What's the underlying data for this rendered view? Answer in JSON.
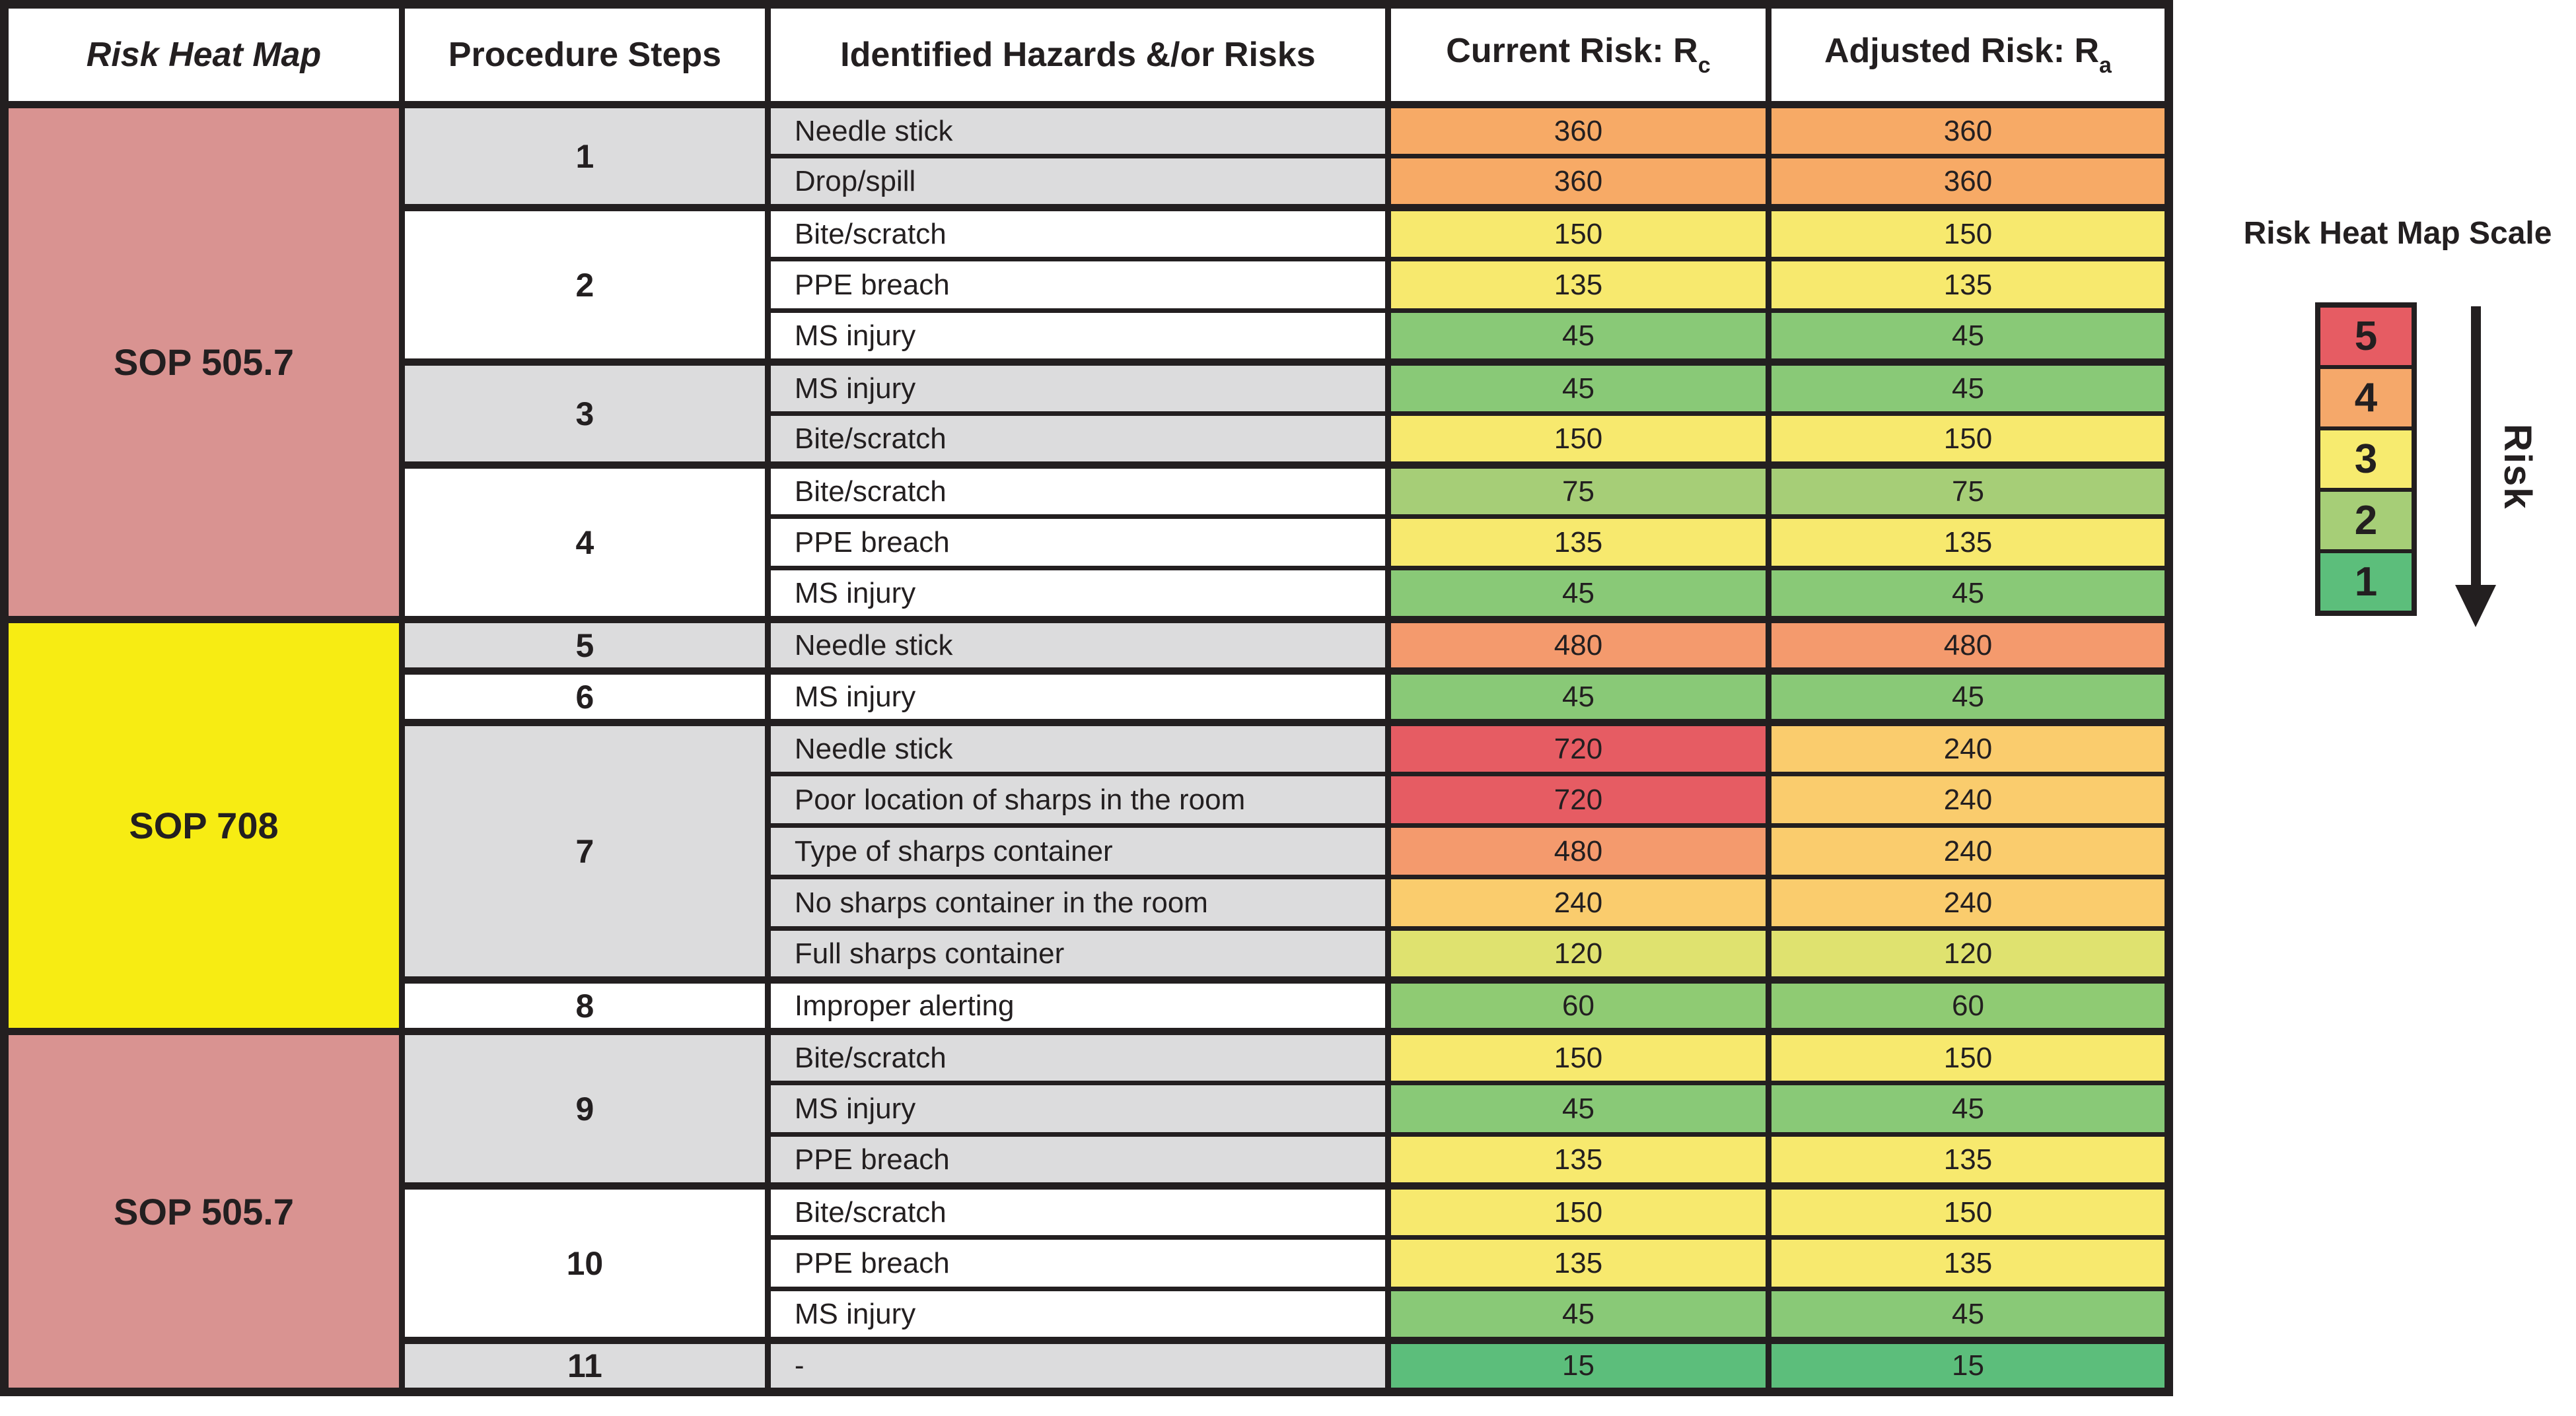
{
  "chart_data": {
    "type": "table",
    "title": "Risk Heat Map",
    "headers": [
      {
        "text": "Risk Heat Map",
        "italic": true
      },
      {
        "text": "Procedure Steps"
      },
      {
        "text": "Identified Hazards &/or Risks"
      },
      {
        "text": "Current Risk: R",
        "sub": "c"
      },
      {
        "text": "Adjusted Risk: R",
        "sub": "a"
      }
    ],
    "sop_blocks": [
      {
        "label": "SOP 505.7",
        "color": "#D99391",
        "row_count": 10
      },
      {
        "label": "SOP 708",
        "color": "#F7EC13",
        "row_count": 8
      },
      {
        "label": "SOP 505.7",
        "color": "#D99391",
        "row_count": 7
      }
    ],
    "steps": [
      {
        "label": "1",
        "row_count": 2
      },
      {
        "label": "2",
        "row_count": 3
      },
      {
        "label": "3",
        "row_count": 2
      },
      {
        "label": "4",
        "row_count": 3
      },
      {
        "label": "5",
        "row_count": 1
      },
      {
        "label": "6",
        "row_count": 1
      },
      {
        "label": "7",
        "row_count": 5
      },
      {
        "label": "8",
        "row_count": 1
      },
      {
        "label": "9",
        "row_count": 3
      },
      {
        "label": "10",
        "row_count": 3
      },
      {
        "label": "11",
        "row_count": 1
      }
    ],
    "rows": [
      {
        "step": "1",
        "hazard": "Needle stick",
        "rc": "360",
        "ra": "360",
        "shaded": true
      },
      {
        "step": "1",
        "hazard": "Drop/spill",
        "rc": "360",
        "ra": "360",
        "shaded": true
      },
      {
        "step": "2",
        "hazard": "Bite/scratch",
        "rc": "150",
        "ra": "150",
        "shaded": false
      },
      {
        "step": "2",
        "hazard": "PPE breach",
        "rc": "135",
        "ra": "135",
        "shaded": false
      },
      {
        "step": "2",
        "hazard": "MS injury",
        "rc": "45",
        "ra": "45",
        "shaded": false
      },
      {
        "step": "3",
        "hazard": "MS injury",
        "rc": "45",
        "ra": "45",
        "shaded": true
      },
      {
        "step": "3",
        "hazard": "Bite/scratch",
        "rc": "150",
        "ra": "150",
        "shaded": true
      },
      {
        "step": "4",
        "hazard": "Bite/scratch",
        "rc": "75",
        "ra": "75",
        "shaded": false
      },
      {
        "step": "4",
        "hazard": "PPE breach",
        "rc": "135",
        "ra": "135",
        "shaded": false
      },
      {
        "step": "4",
        "hazard": "MS injury",
        "rc": "45",
        "ra": "45",
        "shaded": false
      },
      {
        "step": "5",
        "hazard": "Needle stick",
        "rc": "480",
        "ra": "480",
        "shaded": true
      },
      {
        "step": "6",
        "hazard": "MS injury",
        "rc": "45",
        "ra": "45",
        "shaded": false
      },
      {
        "step": "7",
        "hazard": "Needle stick",
        "rc": "720",
        "ra": "240",
        "shaded": true
      },
      {
        "step": "7",
        "hazard": "Poor location of sharps in the room",
        "rc": "720",
        "ra": "240",
        "shaded": true
      },
      {
        "step": "7",
        "hazard": "Type of sharps container",
        "rc": "480",
        "ra": "240",
        "shaded": true
      },
      {
        "step": "7",
        "hazard": "No sharps container in the room",
        "rc": "240",
        "ra": "240",
        "shaded": true
      },
      {
        "step": "7",
        "hazard": "Full sharps container",
        "rc": "120",
        "ra": "120",
        "shaded": true
      },
      {
        "step": "8",
        "hazard": "Improper alerting",
        "rc": "60",
        "ra": "60",
        "shaded": false
      },
      {
        "step": "9",
        "hazard": "Bite/scratch",
        "rc": "150",
        "ra": "150",
        "shaded": true
      },
      {
        "step": "9",
        "hazard": "MS injury",
        "rc": "45",
        "ra": "45",
        "shaded": true
      },
      {
        "step": "9",
        "hazard": "PPE breach",
        "rc": "135",
        "ra": "135",
        "shaded": true
      },
      {
        "step": "10",
        "hazard": "Bite/scratch",
        "rc": "150",
        "ra": "150",
        "shaded": false
      },
      {
        "step": "10",
        "hazard": "PPE breach",
        "rc": "135",
        "ra": "135",
        "shaded": false
      },
      {
        "step": "10",
        "hazard": "MS injury",
        "rc": "45",
        "ra": "45",
        "shaded": false
      },
      {
        "step": "11",
        "hazard": "-",
        "rc": "15",
        "ra": "15",
        "shaded": true
      }
    ],
    "risk_value_colors": {
      "720": "#E65C63",
      "480": "#F49A6D",
      "360": "#F7AA66",
      "240": "#FACC6D",
      "150": "#F7E96E",
      "135": "#F7E96E",
      "120": "#DFE26F",
      "75": "#A6CE77",
      "60": "#8FCB73",
      "45": "#89C977",
      "15": "#5CBE7B"
    }
  },
  "legend": {
    "title": "Risk Heat Map Scale",
    "scale": [
      {
        "label": "5",
        "color": "#E65C63"
      },
      {
        "label": "4",
        "color": "#F5A86A"
      },
      {
        "label": "3",
        "color": "#F7EB6F"
      },
      {
        "label": "2",
        "color": "#A6CE77"
      },
      {
        "label": "1",
        "color": "#5CBE7B"
      }
    ],
    "arrow_label": "Risk"
  },
  "colors": {
    "row_shaded": "#DCDCDD",
    "row_plain": "#FFFFFF",
    "border": "#231F20",
    "text": "#231F20"
  }
}
